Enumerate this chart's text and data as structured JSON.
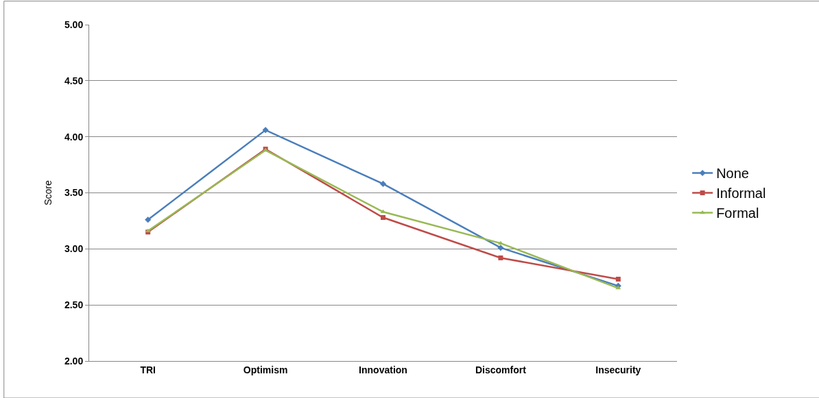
{
  "chart_data": {
    "type": "line",
    "ylabel": "Score",
    "categories": [
      "TRI",
      "Optimism",
      "Innovation",
      "Discomfort",
      "Insecurity"
    ],
    "series": [
      {
        "name": "None",
        "color": "#4a7ebb",
        "marker": "diamond",
        "values": [
          3.26,
          4.06,
          3.58,
          3.01,
          2.67
        ]
      },
      {
        "name": "Informal",
        "color": "#be4b48",
        "marker": "square",
        "values": [
          3.15,
          3.89,
          3.28,
          2.92,
          2.73
        ]
      },
      {
        "name": "Formal",
        "color": "#98b954",
        "marker": "triangle",
        "values": [
          3.16,
          3.88,
          3.33,
          3.05,
          2.65
        ]
      }
    ],
    "ylim": [
      2.0,
      5.0
    ],
    "yticks": [
      {
        "value": 2.0,
        "label": "2.00"
      },
      {
        "value": 2.5,
        "label": "2.50"
      },
      {
        "value": 3.0,
        "label": "3.00"
      },
      {
        "value": 3.5,
        "label": "3.50"
      },
      {
        "value": 4.0,
        "label": "4.00"
      },
      {
        "value": 4.5,
        "label": "4.50"
      },
      {
        "value": 5.0,
        "label": "5.00"
      }
    ],
    "grid": "y",
    "legend": "right",
    "line_style": "solid"
  }
}
